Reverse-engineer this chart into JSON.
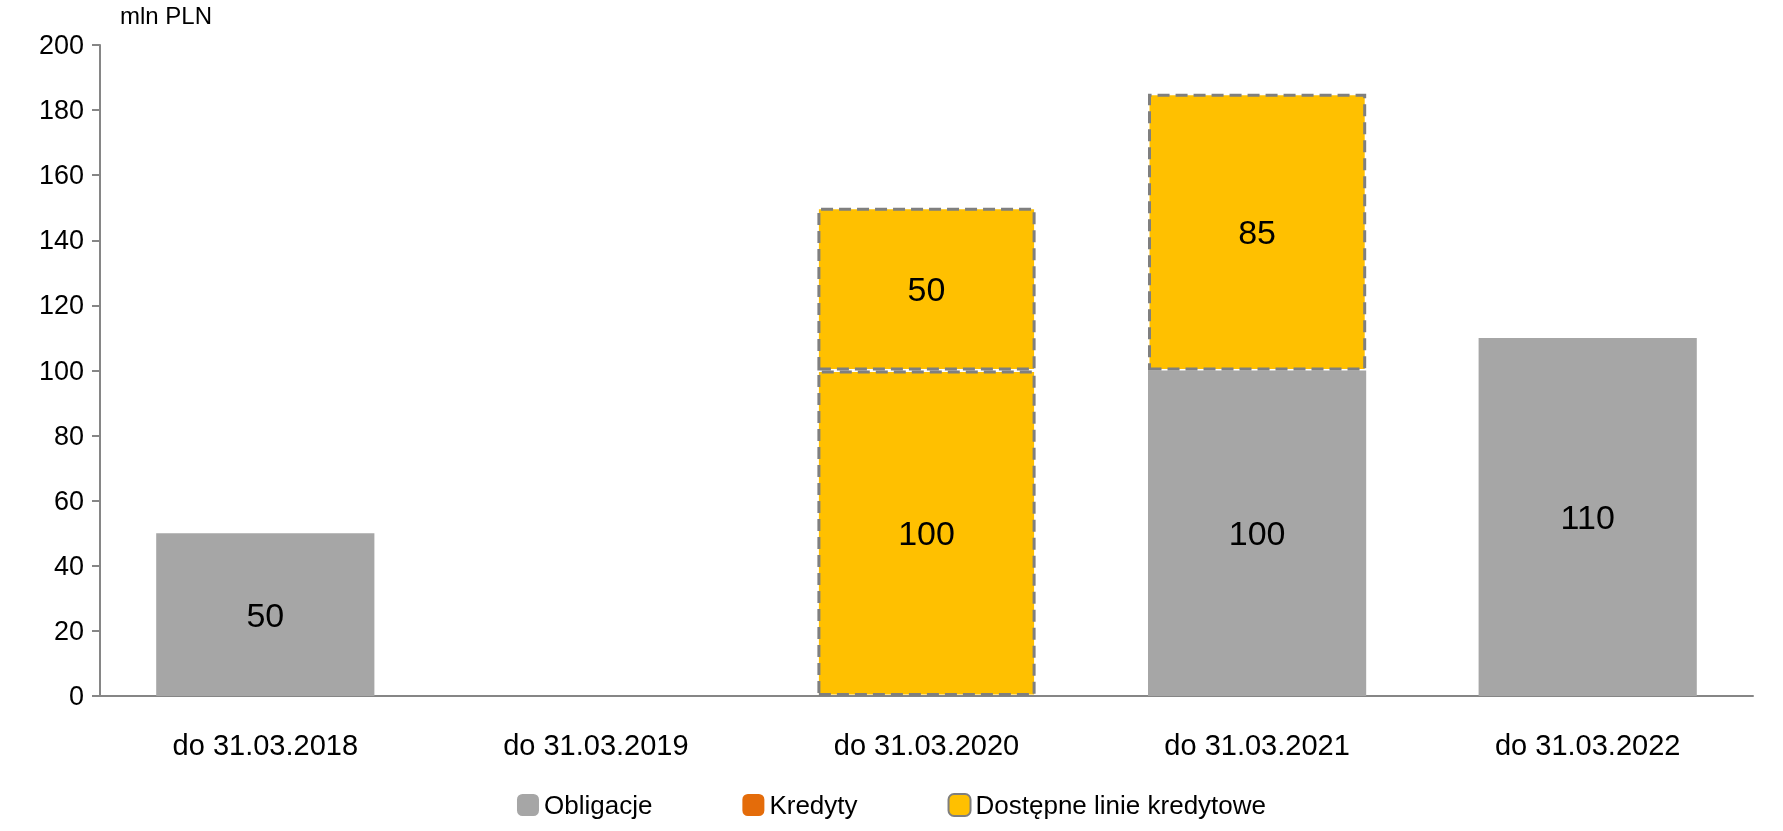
{
  "chart_data": {
    "type": "bar",
    "stacked": true,
    "ylabel": "mln PLN",
    "categories": [
      "do 31.03.2018",
      "do 31.03.2019",
      "do 31.03.2020",
      "do 31.03.2021",
      "do 31.03.2022"
    ],
    "series": [
      {
        "name": "Obligacje",
        "color": "#a6a6a6",
        "values": [
          50,
          null,
          null,
          100,
          110
        ]
      },
      {
        "name": "Kredyty",
        "color": "#e46c0a",
        "values": [
          null,
          null,
          null,
          null,
          null
        ]
      },
      {
        "name": "Dostępne linie kredytowe",
        "color": "#ffc000",
        "line_style": "dashed",
        "values": [
          null,
          null,
          100,
          85,
          null
        ]
      },
      {
        "color": "#ffc000",
        "line_style": "dashed",
        "values": [
          null,
          null,
          50,
          null,
          null
        ]
      }
    ],
    "ylim": [
      0,
      200
    ],
    "yticks": [
      0,
      20,
      40,
      60,
      80,
      100,
      120,
      140,
      160,
      180,
      200
    ],
    "data_labels": true,
    "grid": false,
    "legend": "bottom"
  }
}
